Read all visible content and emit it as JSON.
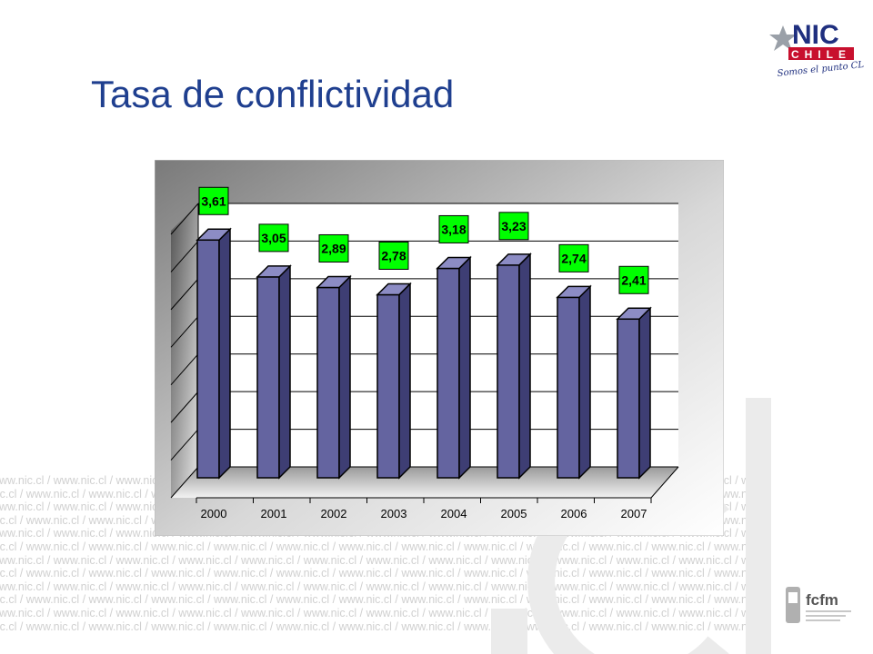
{
  "slide": {
    "title": "Tasa de conflictividad",
    "watermark_text": "www.nic.cl / www.nic.cl / www.nic.cl / www.nic.cl / www.nic.cl / www.nic.cl / www.nic.cl / www.nic.cl / www.nic.cl / www.nic.cl / www.nic.cl /"
  },
  "logos": {
    "nic": {
      "brand": "NIC",
      "sub": "CHILE",
      "tagline": "Somos el punto CL"
    },
    "fcfm": {
      "brand": "fcfm"
    }
  },
  "colors": {
    "title": "#1f3f8f",
    "bar_front": "#6464a0",
    "bar_side": "#3e3e74",
    "bar_top": "#8c8cc4",
    "label_bg": "#00ff00",
    "nic_red": "#c8102e",
    "nic_blue": "#1f2f7f"
  },
  "chart_data": {
    "type": "bar",
    "categories": [
      "2000",
      "2001",
      "2002",
      "2003",
      "2004",
      "2005",
      "2006",
      "2007"
    ],
    "values": [
      3.61,
      3.05,
      2.89,
      2.78,
      3.18,
      3.23,
      2.74,
      2.41
    ],
    "data_labels": [
      "3,61",
      "3,05",
      "2,89",
      "2,78",
      "3,18",
      "3,23",
      "2,74",
      "2,41"
    ],
    "title": "",
    "xlabel": "",
    "ylabel": "",
    "ylim": [
      0,
      4
    ],
    "grid": true,
    "style": "3d-column"
  }
}
